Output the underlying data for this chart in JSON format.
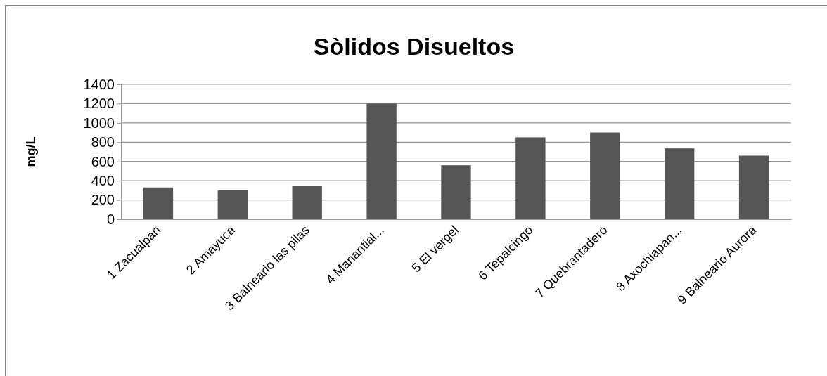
{
  "chart_data": {
    "type": "bar",
    "title": "Sòlidos Disueltos",
    "ylabel": "mg/L",
    "categories": [
      "1 Zacualpan",
      "2 Amayuca",
      "3 Balneario las pilas",
      "4 Manantial...",
      "5 El vergel",
      "6 Tepalcingo",
      "7 Quebrantadero",
      "8 Axochiapan...",
      "9 Balneario Aurora"
    ],
    "values": [
      330,
      300,
      350,
      1200,
      560,
      850,
      900,
      735,
      660
    ],
    "color": "#555555",
    "ylim": [
      0,
      1400
    ],
    "yticks": [
      0,
      200,
      400,
      600,
      800,
      1000,
      1200,
      1400
    ],
    "grid": "y"
  }
}
